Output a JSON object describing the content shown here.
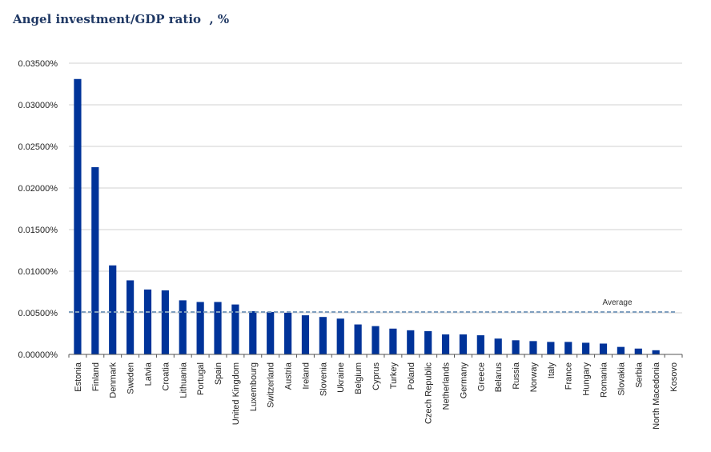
{
  "chart_data": {
    "type": "bar",
    "title": "Angel investment/GDP ratio  , %",
    "categories": [
      "Estonia",
      "Finland",
      "Denmark",
      "Sweden",
      "Latvia",
      "Croatia",
      "Lithuania",
      "Portugal",
      "Spain",
      "United Kingdom",
      "Luxembourg",
      "Switzerland",
      "Austria",
      "Ireland",
      "Slovenia",
      "Ukraine",
      "Belgium",
      "Cyprus",
      "Turkey",
      "Poland",
      "Czech Republic",
      "Netherlands",
      "Germany",
      "Greece",
      "Belarus",
      "Russia",
      "Norway",
      "Italy",
      "France",
      "Hungary",
      "Romania",
      "Slovakia",
      "Serbia",
      "North Macedonia",
      "Kosovo"
    ],
    "values": [
      0.0331,
      0.0225,
      0.0107,
      0.0089,
      0.0078,
      0.0077,
      0.0065,
      0.0063,
      0.0063,
      0.006,
      0.0052,
      0.0051,
      0.005,
      0.0047,
      0.0045,
      0.0043,
      0.0036,
      0.0034,
      0.0031,
      0.0029,
      0.0028,
      0.0024,
      0.0024,
      0.0023,
      0.0019,
      0.0017,
      0.0016,
      0.0015,
      0.0015,
      0.0014,
      0.0013,
      0.0009,
      0.0007,
      0.0005,
      0.0
    ],
    "ylim": [
      0,
      0.035
    ],
    "yticks": [
      "0.00000%",
      "0.00500%",
      "0.01000%",
      "0.01500%",
      "0.02000%",
      "0.02500%",
      "0.03000%",
      "0.03500%"
    ],
    "average": {
      "label": "Average",
      "value": 0.0051
    },
    "grid": true,
    "legend": "none",
    "bar_color": "#003399",
    "average_color": "#7f9fbf"
  }
}
